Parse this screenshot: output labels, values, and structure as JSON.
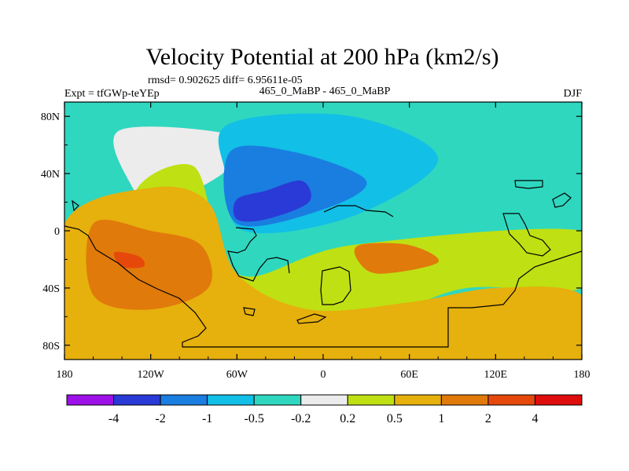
{
  "chart_data": {
    "type": "heatmap",
    "title": "Velocity Potential at 200 hPa (km2/s)",
    "stats_line": "rmsd= 0.902625 diff= 6.95611e-05",
    "left_label": "Expt = tfGWp-teYEp",
    "center_label": "465_0_MaBP - 465_0_MaBP",
    "right_label": "DJF",
    "xlim": [
      -180,
      180
    ],
    "ylim": [
      -90,
      90
    ],
    "x_ticks": [
      {
        "value": -180,
        "label": "180"
      },
      {
        "value": -120,
        "label": "120W"
      },
      {
        "value": -60,
        "label": "60W"
      },
      {
        "value": 0,
        "label": "0"
      },
      {
        "value": 60,
        "label": "60E"
      },
      {
        "value": 120,
        "label": "120E"
      },
      {
        "value": 180,
        "label": "180"
      }
    ],
    "y_ticks": [
      {
        "value": 80,
        "label": "80N"
      },
      {
        "value": 40,
        "label": "40N"
      },
      {
        "value": 0,
        "label": "0"
      },
      {
        "value": -40,
        "label": "40S"
      },
      {
        "value": -80,
        "label": "80S"
      }
    ],
    "contour_levels": [
      "-4",
      "-2",
      "-1",
      "-0.5",
      "-0.2",
      "0.2",
      "0.5",
      "1",
      "2",
      "4"
    ],
    "colors": [
      "#9d10e8",
      "#2a3ad6",
      "#1a7de0",
      "#12bfe6",
      "#2fd7bf",
      "#ececec",
      "#bfe013",
      "#e6b00d",
      "#e07a0a",
      "#e6480b",
      "#e00d0d"
    ],
    "regions": [
      {
        "level": "-0.2 to 0.2",
        "bounds": [
          [
            -142,
            70
          ],
          [
            -55,
            65
          ],
          [
            -70,
            40
          ],
          [
            -120,
            15
          ],
          [
            -130,
            25
          ]
        ]
      },
      {
        "level": "-0.5 to -0.2",
        "bounds": [
          [
            -160,
            82
          ],
          [
            60,
            82
          ],
          [
            180,
            50
          ],
          [
            180,
            18
          ],
          [
            40,
            6
          ],
          [
            -60,
            0
          ],
          [
            -120,
            40
          ],
          [
            -140,
            60
          ]
        ]
      },
      {
        "level": "-1 to -0.5",
        "bounds": [
          [
            -65,
            75
          ],
          [
            20,
            80
          ],
          [
            80,
            50
          ],
          [
            20,
            10
          ],
          [
            -55,
            0
          ],
          [
            -68,
            40
          ]
        ]
      },
      {
        "level": "-2 to -1",
        "bounds": [
          [
            -65,
            55
          ],
          [
            -20,
            55
          ],
          [
            30,
            35
          ],
          [
            0,
            15
          ],
          [
            -60,
            5
          ]
        ]
      },
      {
        "level": "-4 to -2",
        "bounds": [
          [
            -60,
            22
          ],
          [
            -40,
            28
          ],
          [
            -15,
            35
          ],
          [
            -10,
            20
          ],
          [
            -40,
            8
          ],
          [
            -60,
            8
          ]
        ]
      },
      {
        "level": "0.2 to 0.5",
        "bounds": [
          [
            -130,
            15
          ],
          [
            -90,
            45
          ],
          [
            -60,
            -30
          ],
          [
            20,
            -10
          ],
          [
            180,
            0
          ],
          [
            180,
            -40
          ],
          [
            100,
            -40
          ],
          [
            40,
            -60
          ],
          [
            -20,
            -60
          ]
        ]
      },
      {
        "level": "0.5 to 1",
        "bounds": [
          [
            -180,
            5
          ],
          [
            -120,
            30
          ],
          [
            -80,
            20
          ],
          [
            -60,
            -30
          ],
          [
            -10,
            -55
          ],
          [
            60,
            -50
          ],
          [
            120,
            -40
          ],
          [
            180,
            -45
          ],
          [
            180,
            -90
          ],
          [
            -180,
            -90
          ]
        ]
      },
      {
        "level": "1 to 2",
        "bounds": [
          [
            -160,
            5
          ],
          [
            -120,
            0
          ],
          [
            -85,
            -10
          ],
          [
            -80,
            -40
          ],
          [
            -120,
            -55
          ],
          [
            -160,
            -45
          ]
        ]
      },
      {
        "level": "1 to 2",
        "bounds": [
          [
            25,
            -10
          ],
          [
            60,
            -10
          ],
          [
            80,
            -22
          ],
          [
            40,
            -30
          ],
          [
            25,
            -22
          ]
        ]
      },
      {
        "level": "2 to 4",
        "bounds": [
          [
            -145,
            -15
          ],
          [
            -128,
            -18
          ],
          [
            -125,
            -25
          ],
          [
            -140,
            -25
          ]
        ]
      }
    ]
  }
}
